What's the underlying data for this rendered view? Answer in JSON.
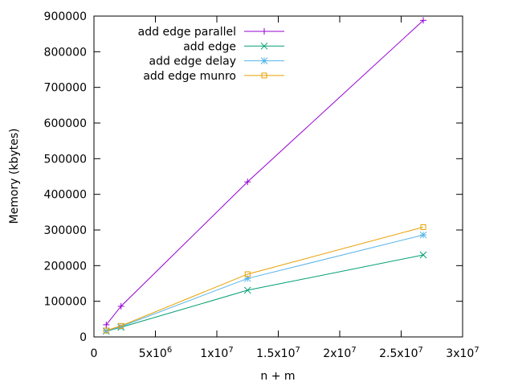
{
  "chart_data": {
    "type": "line",
    "title": "",
    "xlabel": "n + m",
    "ylabel": "Memory (kbytes)",
    "xlim": [
      0,
      30000000
    ],
    "ylim": [
      0,
      900000
    ],
    "grid": false,
    "legend_position": "top-left",
    "x_ticks": [
      {
        "value": 0,
        "label": "0",
        "exp": ""
      },
      {
        "value": 5000000,
        "label": "5x10",
        "exp": "6"
      },
      {
        "value": 10000000,
        "label": "1x10",
        "exp": "7"
      },
      {
        "value": 15000000,
        "label": "1.5x10",
        "exp": "7"
      },
      {
        "value": 20000000,
        "label": "2x10",
        "exp": "7"
      },
      {
        "value": 25000000,
        "label": "2.5x10",
        "exp": "7"
      },
      {
        "value": 30000000,
        "label": "3x10",
        "exp": "7"
      }
    ],
    "y_ticks": [
      {
        "value": 0,
        "label": "0"
      },
      {
        "value": 100000,
        "label": "100000"
      },
      {
        "value": 200000,
        "label": "200000"
      },
      {
        "value": 300000,
        "label": "300000"
      },
      {
        "value": 400000,
        "label": "400000"
      },
      {
        "value": 500000,
        "label": "500000"
      },
      {
        "value": 600000,
        "label": "600000"
      },
      {
        "value": 700000,
        "label": "700000"
      },
      {
        "value": 800000,
        "label": "800000"
      },
      {
        "value": 900000,
        "label": "900000"
      }
    ],
    "x": [
      1000000,
      2200000,
      12500000,
      26800000
    ],
    "series": [
      {
        "name": "add edge parallel",
        "marker": "plus",
        "color": "#9400d3",
        "values": [
          34000,
          86000,
          435000,
          888000
        ]
      },
      {
        "name": "add edge",
        "marker": "x",
        "color": "#009e73",
        "values": [
          16000,
          27000,
          131000,
          230000
        ]
      },
      {
        "name": "add edge delay",
        "marker": "star",
        "color": "#56b4e9",
        "values": [
          17000,
          29000,
          164000,
          286000
        ]
      },
      {
        "name": "add edge munro",
        "marker": "square",
        "color": "#e69f00",
        "values": [
          18000,
          31000,
          176000,
          308000
        ]
      }
    ]
  }
}
